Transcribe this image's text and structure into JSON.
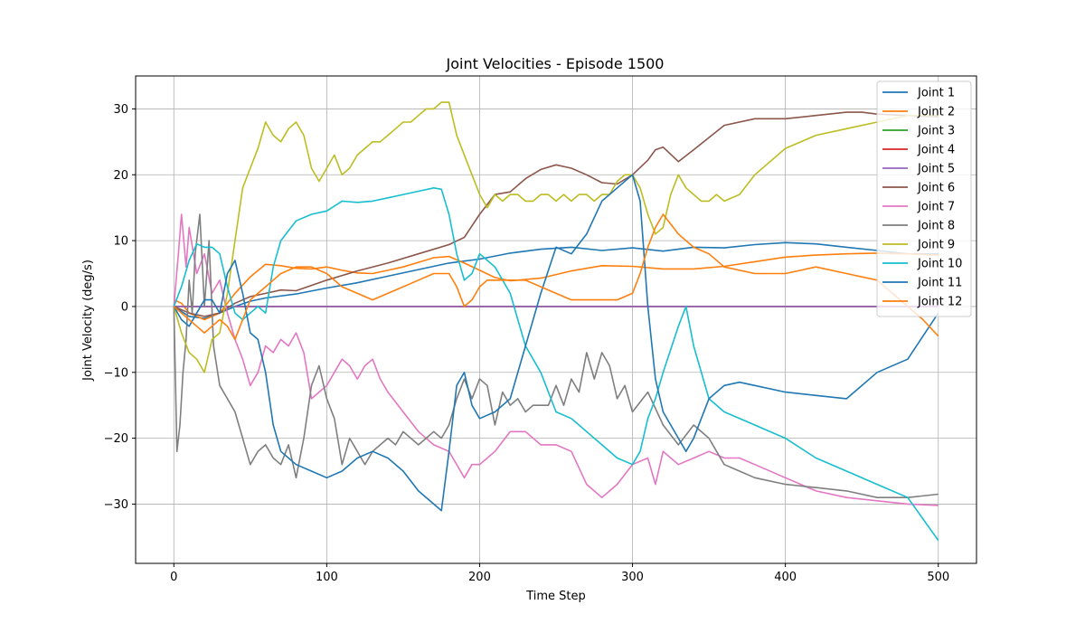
{
  "chart_data": {
    "type": "line",
    "title": "Joint Velocities - Episode 1500",
    "xlabel": "Time Step",
    "ylabel": "Joint Velocity (deg/s)",
    "xlim": [
      -25,
      525
    ],
    "ylim": [
      -39,
      35
    ],
    "xticks": [
      0,
      100,
      200,
      300,
      400,
      500
    ],
    "yticks": [
      -30,
      -20,
      -10,
      0,
      10,
      20,
      30
    ],
    "grid": true,
    "legend_position": "top-right",
    "series": [
      {
        "name": "Joint 1",
        "color": "#1f77b4",
        "x": [
          0,
          10,
          20,
          30,
          40,
          50,
          60,
          80,
          100,
          120,
          140,
          160,
          180,
          200,
          220,
          240,
          260,
          280,
          300,
          320,
          340,
          360,
          380,
          400,
          420,
          440,
          460,
          480,
          500
        ],
        "y": [
          0,
          -1.5,
          -1.8,
          -1,
          0,
          0.8,
          1.3,
          1.9,
          2.8,
          3.6,
          4.6,
          5.6,
          6.6,
          7.2,
          8.1,
          8.7,
          9,
          8.5,
          8.9,
          8.4,
          9,
          8.9,
          9.4,
          9.7,
          9.5,
          9,
          8.5,
          8,
          8
        ]
      },
      {
        "name": "Joint 2",
        "color": "#ff7f0e",
        "x": [
          0,
          5,
          10,
          20,
          30,
          40,
          50,
          60,
          70,
          80,
          90,
          100,
          110,
          120,
          130,
          140,
          150,
          160,
          170,
          180,
          190,
          200,
          210,
          220,
          240,
          260,
          280,
          300,
          320,
          340,
          360,
          380,
          400,
          420,
          440,
          460,
          480,
          490,
          500
        ],
        "y": [
          1,
          0.5,
          -1,
          -2,
          -1,
          2,
          4.5,
          6.4,
          6.2,
          5.8,
          5.7,
          6,
          5.5,
          5.1,
          5,
          5.5,
          6,
          6.7,
          7.4,
          7.6,
          6.6,
          5.5,
          4.4,
          3.9,
          4.3,
          5.4,
          6.2,
          6.1,
          5.7,
          5.7,
          6.1,
          6.8,
          7.5,
          7.8,
          8,
          8.1,
          8,
          7.9,
          7.8
        ]
      },
      {
        "name": "Joint 3",
        "color": "#2ca02c",
        "x": [
          0,
          500
        ],
        "y": [
          0,
          0
        ]
      },
      {
        "name": "Joint 4",
        "color": "#d62728",
        "x": [
          0,
          500
        ],
        "y": [
          0,
          0
        ]
      },
      {
        "name": "Joint 5",
        "color": "#9467bd",
        "x": [
          0,
          500
        ],
        "y": [
          0,
          0
        ]
      },
      {
        "name": "Joint 6",
        "color": "#8c564b",
        "x": [
          0,
          10,
          20,
          30,
          40,
          50,
          60,
          70,
          80,
          100,
          120,
          140,
          160,
          180,
          190,
          200,
          210,
          220,
          230,
          240,
          250,
          260,
          270,
          280,
          290,
          300,
          310,
          315,
          320,
          330,
          340,
          360,
          380,
          400,
          420,
          440,
          450,
          460,
          480,
          500
        ],
        "y": [
          0,
          -1,
          -1.5,
          -1,
          0.5,
          1.5,
          2,
          2.5,
          2.4,
          4,
          5.4,
          6.6,
          8,
          9.4,
          10.5,
          14,
          17,
          17.4,
          19.4,
          20.8,
          21.5,
          21,
          20,
          18.8,
          18.6,
          20,
          22.2,
          23.8,
          24.2,
          22,
          23.8,
          27.5,
          28.5,
          28.5,
          29,
          29.5,
          29.5,
          29.2,
          29,
          28.8
        ]
      },
      {
        "name": "Joint 7",
        "color": "#e377c2",
        "x": [
          0,
          3,
          5,
          8,
          10,
          15,
          20,
          25,
          30,
          35,
          40,
          45,
          50,
          55,
          60,
          65,
          70,
          75,
          80,
          85,
          90,
          95,
          100,
          105,
          110,
          115,
          120,
          125,
          130,
          135,
          140,
          150,
          160,
          170,
          180,
          185,
          190,
          195,
          200,
          210,
          220,
          230,
          240,
          250,
          260,
          270,
          280,
          290,
          300,
          310,
          315,
          320,
          330,
          340,
          350,
          360,
          370,
          380,
          400,
          420,
          440,
          460,
          480,
          500
        ],
        "y": [
          0,
          8,
          14,
          6,
          12,
          5,
          8,
          2,
          4,
          -1,
          -5,
          -8,
          -12,
          -10,
          -6,
          -7,
          -5,
          -6,
          -4,
          -7,
          -14,
          -13,
          -12,
          -10,
          -8,
          -9,
          -11,
          -9,
          -8,
          -11,
          -13,
          -16,
          -19,
          -21,
          -22,
          -24,
          -26,
          -24,
          -24,
          -22,
          -19,
          -19,
          -21,
          -21,
          -22,
          -27,
          -29,
          -27,
          -24,
          -23,
          -27,
          -22,
          -24,
          -23,
          -22,
          -23,
          -23,
          -24,
          -26,
          -28,
          -29,
          -29.5,
          -30,
          -30.2
        ]
      },
      {
        "name": "Joint 8",
        "color": "#7f7f7f",
        "x": [
          0,
          2,
          4,
          6,
          8,
          10,
          12,
          14,
          17,
          20,
          23,
          26,
          30,
          35,
          40,
          45,
          50,
          55,
          60,
          65,
          70,
          75,
          80,
          85,
          90,
          95,
          100,
          105,
          110,
          115,
          120,
          125,
          130,
          135,
          140,
          145,
          150,
          155,
          160,
          165,
          170,
          175,
          180,
          185,
          190,
          195,
          200,
          205,
          210,
          215,
          220,
          225,
          230,
          235,
          240,
          245,
          250,
          255,
          260,
          265,
          270,
          275,
          280,
          285,
          290,
          295,
          300,
          310,
          320,
          330,
          340,
          350,
          360,
          370,
          380,
          400,
          420,
          440,
          460,
          480,
          500
        ],
        "y": [
          0,
          -22,
          -18,
          -10,
          -5,
          4,
          -1,
          8,
          14,
          0,
          10,
          -6,
          -12,
          -14,
          -16,
          -20,
          -24,
          -22,
          -21,
          -23,
          -24,
          -21,
          -26,
          -20,
          -12,
          -9,
          -14,
          -17,
          -24,
          -20,
          -22,
          -24,
          -22,
          -21,
          -20,
          -21,
          -19,
          -20,
          -21,
          -20,
          -19,
          -20,
          -18,
          -14,
          -11,
          -14,
          -11,
          -12,
          -18,
          -13,
          -15,
          -14,
          -16,
          -15,
          -15,
          -15,
          -12,
          -15,
          -11,
          -13,
          -7,
          -11,
          -7,
          -9,
          -14,
          -12,
          -16,
          -13,
          -18,
          -21,
          -18,
          -20,
          -24,
          -25,
          -26,
          -27,
          -27.5,
          -28,
          -29,
          -29,
          -28.5
        ]
      },
      {
        "name": "Joint 9",
        "color": "#bcbd22",
        "x": [
          0,
          5,
          10,
          15,
          20,
          25,
          30,
          35,
          40,
          45,
          50,
          55,
          60,
          65,
          70,
          75,
          80,
          85,
          90,
          95,
          100,
          105,
          110,
          115,
          120,
          125,
          130,
          135,
          140,
          145,
          150,
          155,
          160,
          165,
          170,
          175,
          180,
          185,
          190,
          195,
          200,
          205,
          210,
          215,
          220,
          225,
          230,
          235,
          240,
          245,
          250,
          255,
          260,
          265,
          270,
          275,
          280,
          285,
          290,
          295,
          300,
          305,
          310,
          315,
          320,
          325,
          330,
          335,
          340,
          345,
          350,
          355,
          360,
          370,
          380,
          400,
          420,
          440,
          460,
          480,
          500
        ],
        "y": [
          0,
          -4,
          -7,
          -8,
          -10,
          -5,
          -4,
          2,
          10,
          18,
          21,
          24,
          28,
          26,
          25,
          27,
          28,
          26,
          21,
          19,
          21,
          23,
          20,
          21,
          23,
          24,
          25,
          25,
          26,
          27,
          28,
          28,
          29,
          30,
          30,
          31,
          31,
          26,
          23,
          20,
          17,
          15,
          17,
          16,
          17,
          17,
          16,
          16,
          17,
          17,
          16,
          17,
          16,
          17,
          17,
          16,
          17,
          17,
          19,
          20,
          20,
          18,
          14,
          11,
          12,
          17,
          20,
          18,
          17,
          16,
          16,
          17,
          16,
          17,
          20,
          24,
          26,
          27,
          28,
          29,
          29
        ]
      },
      {
        "name": "Joint 10",
        "color": "#17becf",
        "x": [
          0,
          5,
          10,
          15,
          20,
          25,
          30,
          35,
          40,
          45,
          50,
          55,
          60,
          65,
          70,
          80,
          90,
          100,
          110,
          120,
          130,
          140,
          150,
          160,
          170,
          175,
          180,
          185,
          190,
          195,
          200,
          205,
          210,
          220,
          230,
          240,
          250,
          260,
          270,
          280,
          290,
          300,
          305,
          310,
          315,
          320,
          330,
          335,
          340,
          350,
          360,
          380,
          400,
          420,
          440,
          460,
          480,
          500
        ],
        "y": [
          0,
          3,
          7,
          9.5,
          9,
          9,
          8,
          3,
          -1,
          -2,
          -1,
          0,
          -1,
          6,
          10,
          13,
          14,
          14.5,
          16,
          15.8,
          16,
          16.5,
          17,
          17.5,
          18,
          17.8,
          14,
          8,
          4,
          5,
          8,
          7,
          6,
          2,
          -6,
          -10,
          -16,
          -17,
          -19,
          -21,
          -23,
          -24,
          -22,
          -17,
          -14,
          -10,
          -3,
          0,
          -6,
          -14,
          -16,
          -18,
          -20,
          -23,
          -25,
          -27,
          -29,
          -35.5
        ]
      },
      {
        "name": "Joint 11",
        "color": "#1f77b4",
        "x": [
          0,
          5,
          10,
          15,
          20,
          25,
          30,
          35,
          40,
          45,
          50,
          55,
          60,
          65,
          70,
          80,
          90,
          100,
          110,
          120,
          130,
          140,
          150,
          160,
          170,
          175,
          180,
          185,
          190,
          195,
          200,
          210,
          220,
          230,
          240,
          250,
          260,
          270,
          280,
          290,
          300,
          305,
          310,
          315,
          320,
          330,
          335,
          340,
          350,
          360,
          370,
          380,
          400,
          420,
          440,
          460,
          480,
          500
        ],
        "y": [
          0,
          -2,
          -3,
          -1,
          1,
          1,
          -1,
          5,
          7,
          2,
          -4,
          -5,
          -10,
          -18,
          -22,
          -24,
          -25,
          -26,
          -25,
          -23,
          -22,
          -23,
          -25,
          -28,
          -30,
          -31,
          -22,
          -12,
          -10,
          -15,
          -17,
          -16,
          -14,
          -6,
          2,
          9,
          8,
          11,
          16,
          18,
          20,
          16,
          0,
          -11,
          -16,
          -20,
          -22,
          -20,
          -14,
          -12,
          -11.5,
          -12,
          -13,
          -13.5,
          -14,
          -10,
          -8,
          -1
        ]
      },
      {
        "name": "Joint 12",
        "color": "#ff7f0e",
        "x": [
          0,
          5,
          10,
          15,
          20,
          25,
          30,
          35,
          40,
          45,
          50,
          55,
          60,
          65,
          70,
          80,
          90,
          100,
          110,
          120,
          130,
          140,
          150,
          160,
          170,
          180,
          185,
          190,
          195,
          200,
          205,
          210,
          220,
          230,
          240,
          250,
          260,
          270,
          280,
          290,
          300,
          305,
          310,
          315,
          320,
          330,
          340,
          350,
          360,
          380,
          400,
          420,
          440,
          460,
          470,
          480,
          490,
          500
        ],
        "y": [
          0,
          -1,
          -2,
          -3,
          -4,
          -3,
          -2,
          -3,
          -5,
          -2,
          1,
          2,
          3,
          4,
          5,
          6,
          6,
          5,
          3,
          2,
          1,
          2,
          3,
          4,
          5,
          5,
          3,
          0,
          1,
          3,
          4,
          4,
          4,
          4,
          3,
          2,
          1,
          1,
          1,
          1,
          2,
          5,
          9,
          12,
          14,
          11,
          9,
          8,
          6,
          5,
          5,
          6,
          5,
          4,
          2,
          0,
          -2,
          -4.5
        ]
      }
    ]
  }
}
